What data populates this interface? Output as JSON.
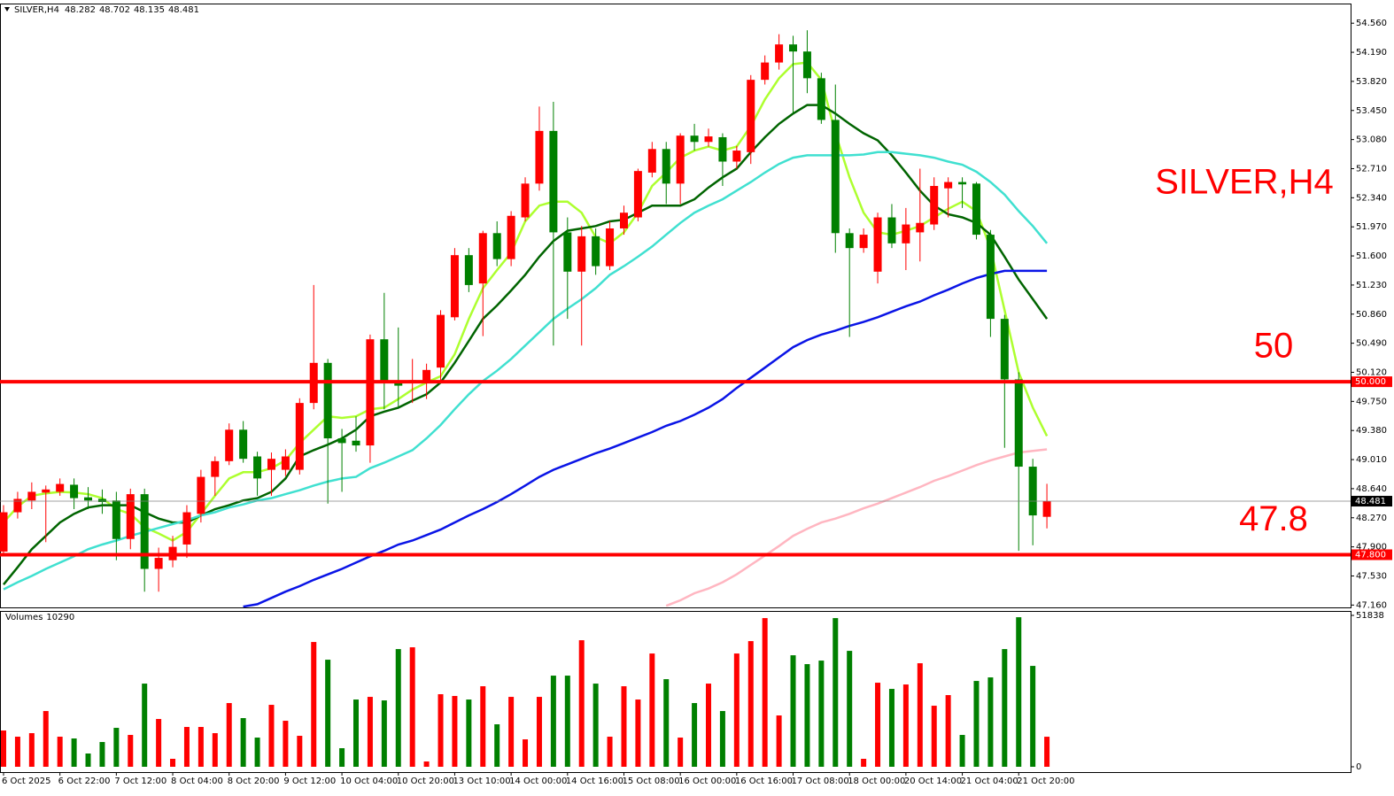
{
  "chart_data": [
    {
      "type": "candlestick",
      "title": "SILVER,H4",
      "categories": [
        "6 Oct 2025",
        null,
        null,
        null,
        "6 Oct 22:00",
        null,
        null,
        null,
        "7 Oct 12:00",
        null,
        null,
        null,
        "8 Oct 04:00",
        null,
        null,
        null,
        "8 Oct 20:00",
        null,
        null,
        null,
        "9 Oct 12:00",
        null,
        null,
        null,
        "10 Oct 04:00",
        null,
        null,
        null,
        "10 Oct 20:00",
        null,
        null,
        null,
        "13 Oct 10:00",
        null,
        null,
        null,
        "14 Oct 00:00",
        null,
        null,
        null,
        "14 Oct 16:00",
        null,
        null,
        null,
        "15 Oct 08:00",
        null,
        null,
        null,
        "16 Oct 00:00",
        null,
        null,
        null,
        "16 Oct 16:00",
        null,
        null,
        null,
        "17 Oct 08:00",
        null,
        null,
        null,
        "18 Oct 00:00",
        null,
        null,
        null,
        "20 Oct 14:00",
        null,
        null,
        null,
        "21 Oct 04:00",
        null,
        null,
        null,
        "21 Oct 20:00",
        null,
        null
      ],
      "open": [
        47.84,
        48.34,
        48.49,
        48.59,
        48.6,
        48.69,
        48.53,
        48.51,
        48.49,
        48.0,
        48.57,
        47.62,
        47.73,
        47.93,
        48.32,
        48.79,
        48.99,
        49.39,
        49.05,
        48.88,
        48.88,
        48.88,
        49.73,
        50.24,
        49.28,
        49.25,
        49.19,
        50.54,
        50.0,
        49.98,
        50.0,
        50.18,
        50.82,
        51.61,
        51.25,
        51.89,
        51.56,
        52.09,
        52.52,
        53.19,
        51.9,
        51.4,
        51.85,
        51.47,
        51.95,
        52.09,
        52.66,
        52.96,
        52.52,
        53.13,
        53.05,
        53.11,
        52.8,
        52.92,
        53.84,
        54.06,
        54.29,
        54.2,
        53.86,
        53.33,
        51.89,
        51.7,
        51.4,
        52.09,
        51.76,
        51.9,
        52.0,
        52.46,
        52.54,
        52.52,
        51.87,
        50.8,
        50.03,
        48.92,
        48.282
      ],
      "high": [
        48.43,
        48.6,
        48.72,
        48.68,
        48.77,
        48.77,
        48.66,
        48.63,
        48.6,
        48.64,
        48.64,
        47.89,
        48.04,
        48.43,
        48.88,
        49.05,
        49.47,
        49.5,
        49.11,
        49.1,
        49.14,
        49.79,
        51.23,
        50.29,
        49.4,
        49.56,
        50.6,
        51.13,
        50.69,
        50.29,
        50.23,
        50.91,
        51.7,
        51.7,
        51.92,
        52.04,
        52.17,
        52.6,
        53.5,
        53.56,
        52.09,
        51.98,
        51.95,
        52.04,
        52.24,
        52.71,
        53.05,
        53.05,
        53.16,
        53.28,
        53.22,
        53.16,
        53.0,
        53.9,
        54.15,
        54.42,
        54.4,
        54.47,
        53.93,
        53.78,
        51.95,
        51.95,
        52.15,
        52.26,
        52.21,
        52.71,
        52.6,
        52.6,
        52.6,
        52.54,
        51.93,
        50.85,
        50.12,
        49.02,
        48.702
      ],
      "low": [
        47.78,
        48.26,
        48.38,
        47.96,
        48.55,
        48.38,
        48.38,
        48.32,
        47.73,
        47.87,
        47.33,
        47.33,
        47.64,
        47.76,
        48.21,
        48.55,
        48.94,
        48.97,
        48.55,
        48.55,
        48.8,
        48.82,
        49.65,
        48.45,
        48.6,
        49.11,
        48.97,
        49.65,
        49.67,
        49.73,
        49.78,
        50.0,
        50.78,
        51.14,
        50.58,
        51.47,
        51.47,
        52.04,
        52.43,
        50.46,
        50.8,
        50.46,
        51.36,
        51.42,
        51.87,
        52.04,
        52.6,
        52.26,
        52.26,
        52.94,
        52.99,
        52.49,
        52.71,
        52.77,
        53.78,
        53.97,
        53.41,
        53.67,
        53.28,
        51.64,
        50.57,
        51.64,
        51.25,
        51.7,
        51.42,
        51.53,
        51.93,
        52.09,
        52.21,
        51.81,
        50.57,
        49.16,
        47.85,
        47.92,
        48.135
      ],
      "close": [
        48.34,
        48.51,
        48.6,
        48.63,
        48.7,
        48.52,
        48.49,
        48.47,
        48.0,
        48.57,
        47.62,
        47.76,
        47.9,
        48.34,
        48.79,
        48.99,
        49.39,
        49.02,
        48.77,
        49.02,
        49.05,
        49.73,
        50.24,
        49.28,
        49.22,
        49.19,
        50.54,
        50.0,
        49.95,
        50.02,
        50.15,
        50.85,
        51.61,
        51.23,
        51.89,
        51.56,
        52.11,
        52.52,
        53.19,
        51.9,
        51.4,
        51.85,
        51.47,
        51.95,
        52.15,
        52.68,
        52.96,
        52.52,
        53.13,
        53.05,
        53.12,
        52.8,
        52.94,
        53.84,
        54.06,
        54.29,
        54.2,
        53.86,
        53.33,
        51.89,
        51.7,
        51.87,
        52.09,
        51.76,
        52.0,
        52.02,
        52.49,
        52.54,
        52.51,
        51.87,
        50.8,
        50.03,
        48.92,
        48.3,
        48.481
      ],
      "up_color": "#ff0000",
      "down_color": "#008000",
      "overlays": [
        {
          "color": "#adff2f",
          "values": [
            48.21,
            48.41,
            48.55,
            48.58,
            48.6,
            48.59,
            48.57,
            48.52,
            48.38,
            48.32,
            48.15,
            48.07,
            47.98,
            48.09,
            48.32,
            48.55,
            48.77,
            48.85,
            48.85,
            48.9,
            49.0,
            49.22,
            49.39,
            49.56,
            49.54,
            49.56,
            49.65,
            49.67,
            49.78,
            49.9,
            49.99,
            50.07,
            50.35,
            50.8,
            51.19,
            51.42,
            51.64,
            52.04,
            52.24,
            52.29,
            52.29,
            52.15,
            51.84,
            51.76,
            51.9,
            52.15,
            52.49,
            52.66,
            52.85,
            52.94,
            52.99,
            52.94,
            52.99,
            53.25,
            53.59,
            53.86,
            54.04,
            54.06,
            53.84,
            53.16,
            52.6,
            52.15,
            51.9,
            51.87,
            51.92,
            51.98,
            52.09,
            52.2,
            52.29,
            52.17,
            51.7,
            50.91,
            50.12,
            49.67,
            49.31
          ]
        },
        {
          "color": "#006400",
          "values": [
            47.42,
            47.64,
            47.87,
            48.04,
            48.21,
            48.32,
            48.4,
            48.43,
            48.43,
            48.43,
            48.34,
            48.26,
            48.21,
            48.21,
            48.3,
            48.38,
            48.43,
            48.49,
            48.52,
            48.6,
            48.77,
            49.05,
            49.13,
            49.2,
            49.28,
            49.39,
            49.56,
            49.62,
            49.67,
            49.76,
            49.84,
            49.99,
            50.24,
            50.52,
            50.8,
            50.97,
            51.16,
            51.36,
            51.59,
            51.79,
            51.92,
            51.95,
            51.98,
            52.04,
            52.06,
            52.15,
            52.24,
            52.24,
            52.24,
            52.32,
            52.47,
            52.6,
            52.71,
            52.92,
            53.11,
            53.28,
            53.41,
            53.52,
            53.52,
            53.41,
            53.28,
            53.16,
            53.07,
            52.88,
            52.66,
            52.43,
            52.24,
            52.13,
            52.09,
            52.02,
            51.87,
            51.59,
            51.3,
            51.05,
            50.8
          ]
        },
        {
          "color": "#40e0d0",
          "values": [
            47.36,
            47.45,
            47.53,
            47.62,
            47.7,
            47.78,
            47.87,
            47.93,
            47.98,
            48.04,
            48.09,
            48.14,
            48.19,
            48.24,
            48.3,
            48.34,
            48.4,
            48.44,
            48.49,
            48.52,
            48.57,
            48.62,
            48.68,
            48.73,
            48.77,
            48.79,
            48.9,
            48.97,
            49.05,
            49.13,
            49.28,
            49.45,
            49.65,
            49.84,
            50.01,
            50.14,
            50.29,
            50.46,
            50.63,
            50.8,
            50.93,
            51.05,
            51.19,
            51.36,
            51.47,
            51.59,
            51.72,
            51.87,
            52.02,
            52.15,
            52.24,
            52.32,
            52.43,
            52.54,
            52.66,
            52.77,
            52.85,
            52.88,
            52.88,
            52.88,
            52.88,
            52.89,
            52.92,
            52.92,
            52.9,
            52.88,
            52.85,
            52.8,
            52.76,
            52.67,
            52.54,
            52.38,
            52.17,
            51.98,
            51.76
          ]
        },
        {
          "color": "#0a14e6",
          "values": [
            null,
            null,
            null,
            null,
            null,
            null,
            null,
            null,
            null,
            null,
            null,
            null,
            null,
            null,
            null,
            null,
            null,
            47.14,
            47.17,
            47.25,
            47.33,
            47.4,
            47.48,
            47.55,
            47.62,
            47.7,
            47.78,
            47.85,
            47.93,
            47.98,
            48.05,
            48.12,
            48.21,
            48.3,
            48.38,
            48.47,
            48.57,
            48.68,
            48.79,
            48.88,
            48.95,
            49.02,
            49.09,
            49.15,
            49.22,
            49.29,
            49.36,
            49.44,
            49.5,
            49.58,
            49.67,
            49.78,
            49.92,
            50.05,
            50.18,
            50.31,
            50.44,
            50.53,
            50.6,
            50.65,
            50.71,
            50.76,
            50.82,
            50.89,
            50.96,
            51.02,
            51.1,
            51.17,
            51.25,
            51.32,
            51.37,
            51.41,
            51.41,
            51.41,
            51.41
          ]
        },
        {
          "color": "#ffb6c1",
          "values": [
            null,
            null,
            null,
            null,
            null,
            null,
            null,
            null,
            null,
            null,
            null,
            null,
            null,
            null,
            null,
            null,
            null,
            null,
            null,
            null,
            null,
            null,
            null,
            null,
            null,
            null,
            null,
            null,
            null,
            null,
            null,
            null,
            null,
            null,
            null,
            null,
            null,
            null,
            null,
            null,
            null,
            null,
            null,
            null,
            null,
            null,
            null,
            47.15,
            47.22,
            47.31,
            47.37,
            47.45,
            47.55,
            47.67,
            47.79,
            47.91,
            48.04,
            48.13,
            48.21,
            48.26,
            48.32,
            48.39,
            48.45,
            48.52,
            48.59,
            48.66,
            48.74,
            48.8,
            48.87,
            48.94,
            49.0,
            49.05,
            49.1,
            49.12,
            49.14
          ]
        }
      ],
      "levels": [
        {
          "value": 50,
          "label": "50.000",
          "color": "#ff0000"
        },
        {
          "value": 47.8,
          "label": "47.800",
          "color": "#ff0000"
        }
      ],
      "ylim": [
        47.13,
        54.81
      ],
      "yticks": [
        {
          "value": 54.56,
          "label": "54.560"
        },
        {
          "value": 54.19,
          "label": "54.190"
        },
        {
          "value": 53.82,
          "label": "53.820"
        },
        {
          "value": 53.45,
          "label": "53.450"
        },
        {
          "value": 53.08,
          "label": "53.080"
        },
        {
          "value": 52.71,
          "label": "52.710"
        },
        {
          "value": 52.34,
          "label": "52.340"
        },
        {
          "value": 51.97,
          "label": "51.970"
        },
        {
          "value": 51.6,
          "label": "51.600"
        },
        {
          "value": 51.23,
          "label": "51.230"
        },
        {
          "value": 50.86,
          "label": "50.860"
        },
        {
          "value": 50.49,
          "label": "50.490"
        },
        {
          "value": 50.12,
          "label": "50.120"
        },
        {
          "value": 49.75,
          "label": "49.750"
        },
        {
          "value": 49.38,
          "label": "49.380"
        },
        {
          "value": 49.01,
          "label": "49.010"
        },
        {
          "value": 48.64,
          "label": "48.640"
        },
        {
          "value": 48.27,
          "label": "48.270"
        },
        {
          "value": 47.9,
          "label": "47.900"
        },
        {
          "value": 47.53,
          "label": "47.530"
        },
        {
          "value": 47.16,
          "label": "47.160"
        }
      ]
    },
    {
      "type": "bar",
      "title": "Volumes",
      "values": [
        12423,
        10302,
        11514,
        19089,
        10302,
        9696,
        4545,
        8484,
        13332,
        10908,
        28482,
        16362,
        2727,
        13635,
        13635,
        11514,
        21816,
        16665,
        9999,
        21210,
        15756,
        10605,
        42723,
        36663,
        6363,
        23028,
        23937,
        22725,
        40299,
        40905,
        1818,
        24846,
        24240,
        23028,
        27573,
        14544,
        23937,
        9393,
        23937,
        31209,
        31209,
        43329,
        28482,
        10302,
        27573,
        23028,
        38784,
        29997,
        9999,
        21816,
        28482,
        19089,
        38784,
        43026,
        50904,
        17574,
        38178,
        35148,
        36360,
        50904,
        39693,
        2727,
        28785,
        26664,
        28179,
        35451,
        20907,
        24543,
        10908,
        29391,
        30603,
        40299,
        51207,
        34542,
        10290
      ],
      "ylim": [
        0,
        51838
      ],
      "yticks": [
        51838,
        0
      ]
    }
  ]
}
